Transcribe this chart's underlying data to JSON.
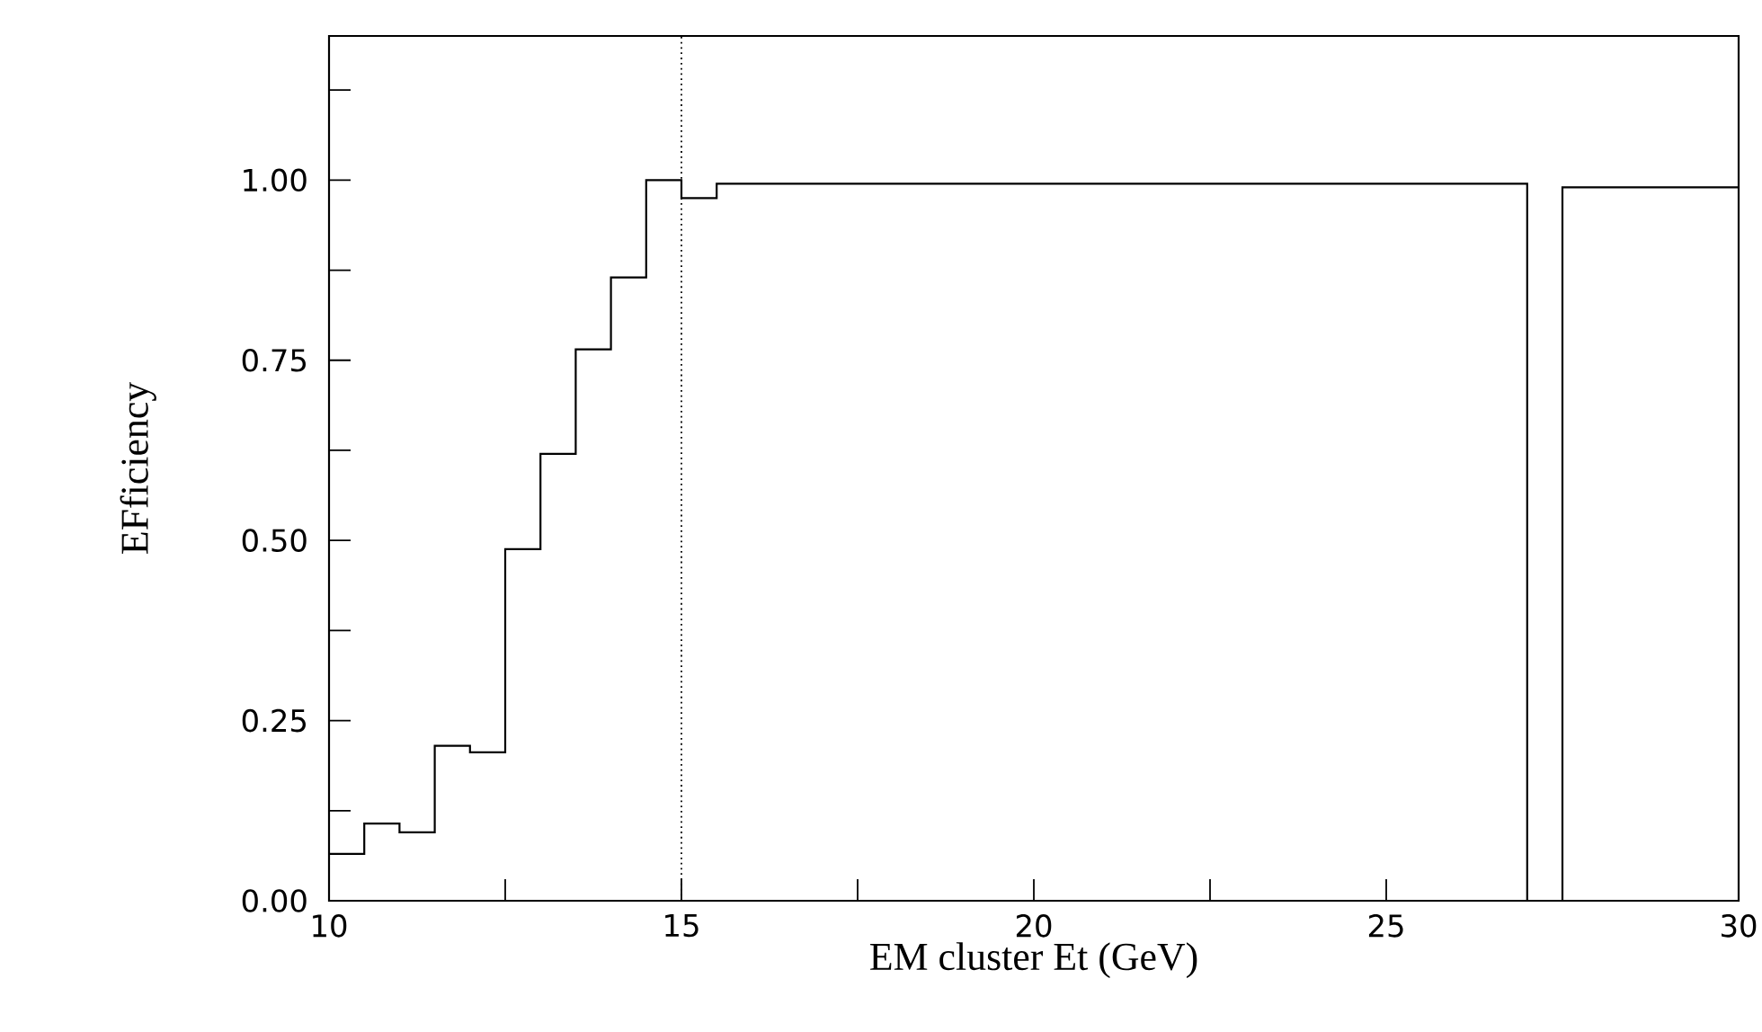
{
  "chart_data": {
    "type": "histogram",
    "xlabel": "EM cluster Et (GeV)",
    "ylabel": "EFficiency",
    "bins": [
      10,
      10.5,
      11,
      11.5,
      12,
      12.5,
      13,
      13.5,
      14,
      14.5,
      15,
      15.5,
      16,
      16.5,
      17,
      17.5,
      18,
      18.5,
      19,
      19.5,
      20,
      20.5,
      21,
      21.5,
      22,
      22.5,
      23,
      23.5,
      24,
      24.5,
      25,
      25.5,
      26,
      26.5,
      27,
      27.5,
      28,
      28.5,
      29,
      29.5,
      30
    ],
    "values": [
      0.065,
      0.107,
      0.095,
      0.215,
      0.206,
      0.488,
      0.62,
      0.765,
      0.865,
      1.0,
      0.975,
      0.995,
      0.995,
      0.995,
      0.995,
      0.995,
      0.995,
      0.995,
      0.995,
      0.995,
      0.995,
      0.995,
      0.995,
      0.995,
      0.995,
      0.995,
      0.995,
      0.995,
      0.995,
      0.995,
      0.995,
      0.995,
      0.995,
      0.995,
      0,
      0.99,
      0.99,
      0.99,
      0.99,
      0.99
    ],
    "color": "#000000",
    "xlim": [
      10,
      30
    ],
    "ylim": [
      0,
      1.2
    ],
    "xticks": [
      10,
      {
        "value": 12.5,
        "label": null
      },
      15,
      {
        "value": 17.5,
        "label": null
      },
      20,
      {
        "value": 22.5,
        "label": null
      },
      25,
      {
        "value": 27.5,
        "label": null
      },
      30
    ],
    "yticks": [
      {
        "value": 0,
        "label": "0.00"
      },
      {
        "value": 0.125,
        "label": null
      },
      0.25,
      {
        "value": 0.375,
        "label": null
      },
      {
        "value": 0.5,
        "label": "0.50"
      },
      {
        "value": 0.625,
        "label": null
      },
      0.75,
      {
        "value": 0.875,
        "label": null
      },
      {
        "value": 1,
        "label": "1.00"
      },
      {
        "value": 1.125,
        "label": null
      }
    ],
    "ref_lines": [
      {
        "axis": "x",
        "value": 15,
        "line_style": "dotted",
        "color": "#000000"
      }
    ]
  }
}
